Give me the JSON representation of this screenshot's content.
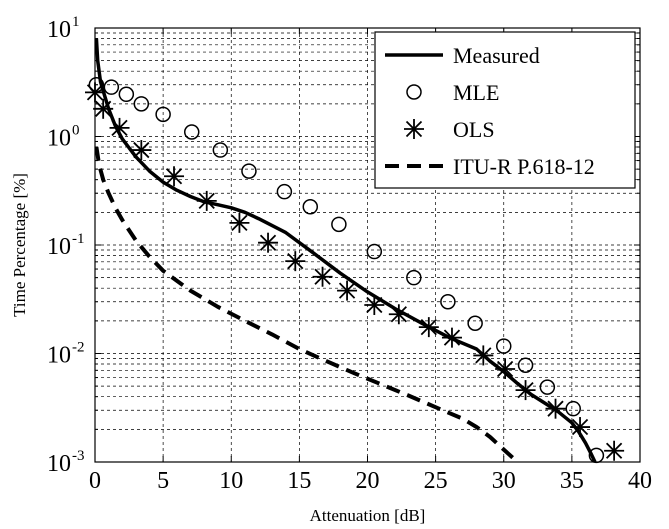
{
  "chart_data": {
    "type": "line",
    "xlabel": "Attenuation [dB]",
    "ylabel": "Time Percentage [%]",
    "xlim": [
      0,
      40
    ],
    "ylim": [
      0.001,
      10
    ],
    "yscale": "log",
    "grid": true,
    "legend_position": "top-right",
    "x_ticks": [
      0,
      5,
      10,
      15,
      20,
      25,
      30,
      35,
      40
    ],
    "y_ticks": [
      {
        "base": "10",
        "exp": "-3",
        "value": 0.001
      },
      {
        "base": "10",
        "exp": "-2",
        "value": 0.01
      },
      {
        "base": "10",
        "exp": "-1",
        "value": 0.1
      },
      {
        "base": "10",
        "exp": "0",
        "value": 1
      },
      {
        "base": "10",
        "exp": "1",
        "value": 10
      }
    ],
    "series": [
      {
        "name": "Measured",
        "style": "solid",
        "color": "#000000",
        "x": [
          0.1,
          0.2,
          0.4,
          0.7,
          1.0,
          1.5,
          2.0,
          3.0,
          4.0,
          5.0,
          6.0,
          7.0,
          8.0,
          9.0,
          10.0,
          11.0,
          12.0,
          14.0,
          16.0,
          18.0,
          20.0,
          22.0,
          24.0,
          26.0,
          28.0,
          29.0,
          30.0,
          31.0,
          32.0,
          33.0,
          34.0,
          35.0,
          35.5,
          36.0,
          36.4,
          36.7
        ],
        "y": [
          8.0,
          5.0,
          3.2,
          2.4,
          1.8,
          1.25,
          0.95,
          0.65,
          0.48,
          0.38,
          0.32,
          0.28,
          0.25,
          0.235,
          0.22,
          0.2,
          0.175,
          0.13,
          0.085,
          0.055,
          0.037,
          0.026,
          0.019,
          0.014,
          0.011,
          0.0085,
          0.0068,
          0.0053,
          0.0042,
          0.0035,
          0.0029,
          0.0023,
          0.0019,
          0.0015,
          0.0012,
          0.001
        ]
      },
      {
        "name": "MLE",
        "style": "circle",
        "color": "#000000",
        "x": [
          0.1,
          1.2,
          2.3,
          3.4,
          5.0,
          7.1,
          9.2,
          11.3,
          13.9,
          15.8,
          17.9,
          20.5,
          23.4,
          25.9,
          27.9,
          30.0,
          31.6,
          33.2,
          35.1,
          36.8
        ],
        "y": [
          3.0,
          2.85,
          2.45,
          2.0,
          1.6,
          1.1,
          0.75,
          0.48,
          0.31,
          0.225,
          0.155,
          0.087,
          0.05,
          0.03,
          0.019,
          0.0117,
          0.0078,
          0.0049,
          0.0031,
          0.00115
        ]
      },
      {
        "name": "OLS",
        "style": "asterisk",
        "color": "#000000",
        "x": [
          0.0,
          0.6,
          1.8,
          3.4,
          5.8,
          8.2,
          10.6,
          12.7,
          14.7,
          16.7,
          18.5,
          20.5,
          22.3,
          24.5,
          26.2,
          28.5,
          30.1,
          31.6,
          33.8,
          35.6,
          38.1
        ],
        "y": [
          2.55,
          1.8,
          1.2,
          0.75,
          0.43,
          0.255,
          0.16,
          0.105,
          0.071,
          0.051,
          0.038,
          0.028,
          0.023,
          0.0175,
          0.014,
          0.0096,
          0.0072,
          0.0046,
          0.0031,
          0.0021,
          0.00127
        ]
      },
      {
        "name": "ITU-R P.618-12",
        "style": "dashed",
        "color": "#000000",
        "x": [
          0.1,
          0.3,
          0.6,
          1.0,
          1.5,
          2.0,
          3.0,
          4.0,
          5.0,
          7.0,
          9.0,
          11.0,
          13.0,
          15.0,
          17.0,
          19.0,
          21.0,
          23.0,
          25.0,
          27.0,
          28.0,
          29.0,
          30.0,
          31.0
        ],
        "y": [
          0.8,
          0.55,
          0.4,
          0.3,
          0.22,
          0.17,
          0.11,
          0.078,
          0.058,
          0.038,
          0.027,
          0.02,
          0.015,
          0.011,
          0.0085,
          0.0066,
          0.0052,
          0.0041,
          0.0032,
          0.0025,
          0.0021,
          0.0017,
          0.0013,
          0.001
        ]
      }
    ]
  }
}
